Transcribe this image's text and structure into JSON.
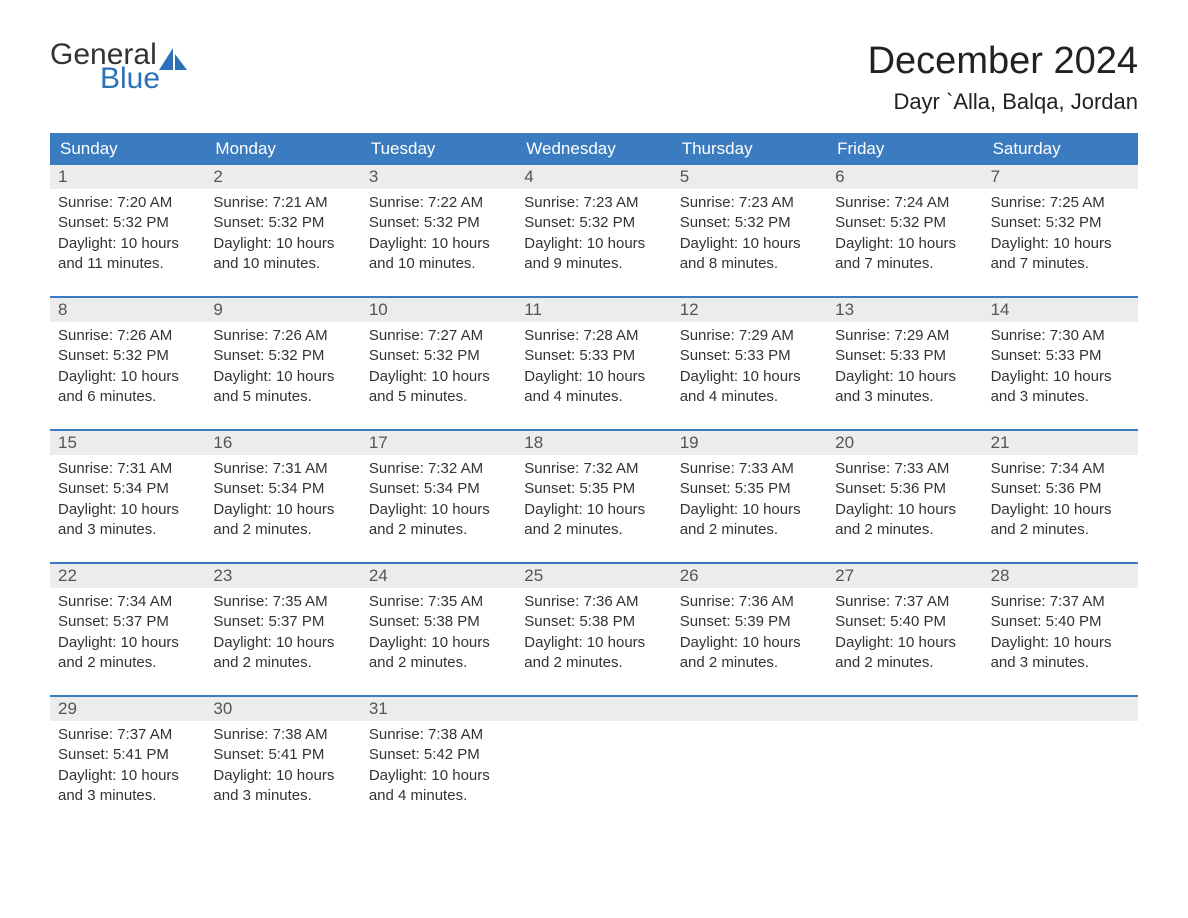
{
  "logo": {
    "text_top": "General",
    "text_bottom": "Blue",
    "icon_color": "#2d72b8"
  },
  "title": "December 2024",
  "location": "Dayr `Alla, Balqa, Jordan",
  "colors": {
    "header_bg": "#3b7bbf",
    "header_text": "#ffffff",
    "date_row_bg": "#ececec",
    "week_border": "#3b7bbf",
    "body_text": "#333333",
    "date_text": "#555555"
  },
  "day_names": [
    "Sunday",
    "Monday",
    "Tuesday",
    "Wednesday",
    "Thursday",
    "Friday",
    "Saturday"
  ],
  "weeks": [
    [
      {
        "n": "1",
        "sr": "7:20 AM",
        "ss": "5:32 PM",
        "dl": "10 hours and 11 minutes."
      },
      {
        "n": "2",
        "sr": "7:21 AM",
        "ss": "5:32 PM",
        "dl": "10 hours and 10 minutes."
      },
      {
        "n": "3",
        "sr": "7:22 AM",
        "ss": "5:32 PM",
        "dl": "10 hours and 10 minutes."
      },
      {
        "n": "4",
        "sr": "7:23 AM",
        "ss": "5:32 PM",
        "dl": "10 hours and 9 minutes."
      },
      {
        "n": "5",
        "sr": "7:23 AM",
        "ss": "5:32 PM",
        "dl": "10 hours and 8 minutes."
      },
      {
        "n": "6",
        "sr": "7:24 AM",
        "ss": "5:32 PM",
        "dl": "10 hours and 7 minutes."
      },
      {
        "n": "7",
        "sr": "7:25 AM",
        "ss": "5:32 PM",
        "dl": "10 hours and 7 minutes."
      }
    ],
    [
      {
        "n": "8",
        "sr": "7:26 AM",
        "ss": "5:32 PM",
        "dl": "10 hours and 6 minutes."
      },
      {
        "n": "9",
        "sr": "7:26 AM",
        "ss": "5:32 PM",
        "dl": "10 hours and 5 minutes."
      },
      {
        "n": "10",
        "sr": "7:27 AM",
        "ss": "5:32 PM",
        "dl": "10 hours and 5 minutes."
      },
      {
        "n": "11",
        "sr": "7:28 AM",
        "ss": "5:33 PM",
        "dl": "10 hours and 4 minutes."
      },
      {
        "n": "12",
        "sr": "7:29 AM",
        "ss": "5:33 PM",
        "dl": "10 hours and 4 minutes."
      },
      {
        "n": "13",
        "sr": "7:29 AM",
        "ss": "5:33 PM",
        "dl": "10 hours and 3 minutes."
      },
      {
        "n": "14",
        "sr": "7:30 AM",
        "ss": "5:33 PM",
        "dl": "10 hours and 3 minutes."
      }
    ],
    [
      {
        "n": "15",
        "sr": "7:31 AM",
        "ss": "5:34 PM",
        "dl": "10 hours and 3 minutes."
      },
      {
        "n": "16",
        "sr": "7:31 AM",
        "ss": "5:34 PM",
        "dl": "10 hours and 2 minutes."
      },
      {
        "n": "17",
        "sr": "7:32 AM",
        "ss": "5:34 PM",
        "dl": "10 hours and 2 minutes."
      },
      {
        "n": "18",
        "sr": "7:32 AM",
        "ss": "5:35 PM",
        "dl": "10 hours and 2 minutes."
      },
      {
        "n": "19",
        "sr": "7:33 AM",
        "ss": "5:35 PM",
        "dl": "10 hours and 2 minutes."
      },
      {
        "n": "20",
        "sr": "7:33 AM",
        "ss": "5:36 PM",
        "dl": "10 hours and 2 minutes."
      },
      {
        "n": "21",
        "sr": "7:34 AM",
        "ss": "5:36 PM",
        "dl": "10 hours and 2 minutes."
      }
    ],
    [
      {
        "n": "22",
        "sr": "7:34 AM",
        "ss": "5:37 PM",
        "dl": "10 hours and 2 minutes."
      },
      {
        "n": "23",
        "sr": "7:35 AM",
        "ss": "5:37 PM",
        "dl": "10 hours and 2 minutes."
      },
      {
        "n": "24",
        "sr": "7:35 AM",
        "ss": "5:38 PM",
        "dl": "10 hours and 2 minutes."
      },
      {
        "n": "25",
        "sr": "7:36 AM",
        "ss": "5:38 PM",
        "dl": "10 hours and 2 minutes."
      },
      {
        "n": "26",
        "sr": "7:36 AM",
        "ss": "5:39 PM",
        "dl": "10 hours and 2 minutes."
      },
      {
        "n": "27",
        "sr": "7:37 AM",
        "ss": "5:40 PM",
        "dl": "10 hours and 2 minutes."
      },
      {
        "n": "28",
        "sr": "7:37 AM",
        "ss": "5:40 PM",
        "dl": "10 hours and 3 minutes."
      }
    ],
    [
      {
        "n": "29",
        "sr": "7:37 AM",
        "ss": "5:41 PM",
        "dl": "10 hours and 3 minutes."
      },
      {
        "n": "30",
        "sr": "7:38 AM",
        "ss": "5:41 PM",
        "dl": "10 hours and 3 minutes."
      },
      {
        "n": "31",
        "sr": "7:38 AM",
        "ss": "5:42 PM",
        "dl": "10 hours and 4 minutes."
      },
      null,
      null,
      null,
      null
    ]
  ],
  "labels": {
    "sunrise": "Sunrise: ",
    "sunset": "Sunset: ",
    "daylight": "Daylight: "
  }
}
